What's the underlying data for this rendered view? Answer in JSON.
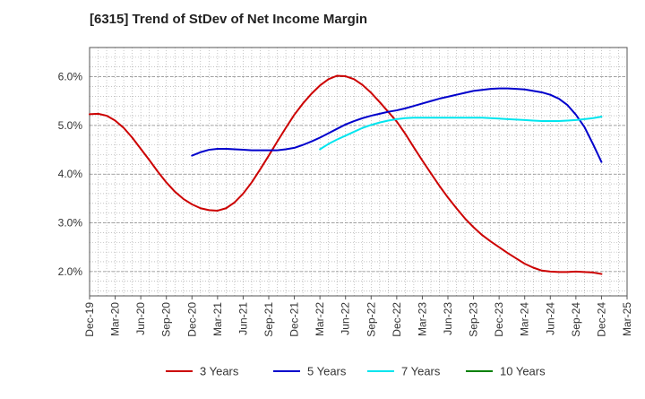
{
  "title": "[6315]  Trend of StDev of Net Income Margin",
  "chart_data": {
    "type": "line",
    "title": "[6315]  Trend of StDev of Net Income Margin",
    "xlabel": "",
    "ylabel": "",
    "y_unit": "%",
    "ylim": [
      1.5,
      6.6
    ],
    "y_ticks": [
      2.0,
      3.0,
      4.0,
      5.0,
      6.0
    ],
    "y_tick_labels": [
      "2.0%",
      "3.0%",
      "4.0%",
      "5.0%",
      "6.0%"
    ],
    "x_tick_labels": [
      "Dec-19",
      "Mar-20",
      "Jun-20",
      "Sep-20",
      "Dec-20",
      "Mar-21",
      "Jun-21",
      "Sep-21",
      "Dec-21",
      "Mar-22",
      "Jun-22",
      "Sep-22",
      "Dec-22",
      "Mar-23",
      "Jun-23",
      "Sep-23",
      "Dec-23",
      "Mar-24",
      "Jun-24",
      "Sep-24",
      "Dec-24",
      "Mar-25"
    ],
    "grid": true,
    "legend_position": "bottom",
    "series": [
      {
        "name": "3 Years",
        "color": "#cc0000",
        "x": [
          "Dec-19",
          "Jan-20",
          "Feb-20",
          "Mar-20",
          "Apr-20",
          "May-20",
          "Jun-20",
          "Jul-20",
          "Aug-20",
          "Sep-20",
          "Oct-20",
          "Nov-20",
          "Dec-20",
          "Jan-21",
          "Feb-21",
          "Mar-21",
          "Apr-21",
          "May-21",
          "Jun-21",
          "Jul-21",
          "Aug-21",
          "Sep-21",
          "Oct-21",
          "Nov-21",
          "Dec-21",
          "Jan-22",
          "Feb-22",
          "Mar-22",
          "Apr-22",
          "May-22",
          "Jun-22",
          "Jul-22",
          "Aug-22",
          "Sep-22",
          "Oct-22",
          "Nov-22",
          "Dec-22",
          "Jan-23",
          "Feb-23",
          "Mar-23",
          "Apr-23",
          "May-23",
          "Jun-23",
          "Jul-23",
          "Aug-23",
          "Sep-23",
          "Oct-23",
          "Nov-23",
          "Dec-23",
          "Jan-24",
          "Feb-24",
          "Mar-24",
          "Apr-24",
          "May-24",
          "Jun-24",
          "Jul-24",
          "Aug-24",
          "Sep-24",
          "Oct-24",
          "Nov-24",
          "Dec-24"
        ],
        "values": [
          5.23,
          5.24,
          5.2,
          5.1,
          4.95,
          4.75,
          4.52,
          4.29,
          4.05,
          3.83,
          3.64,
          3.49,
          3.38,
          3.3,
          3.26,
          3.25,
          3.3,
          3.42,
          3.6,
          3.83,
          4.1,
          4.38,
          4.67,
          4.95,
          5.22,
          5.45,
          5.65,
          5.82,
          5.95,
          6.02,
          6.01,
          5.95,
          5.83,
          5.67,
          5.48,
          5.28,
          5.08,
          4.83,
          4.55,
          4.28,
          4.02,
          3.76,
          3.52,
          3.3,
          3.09,
          2.91,
          2.75,
          2.62,
          2.5,
          2.38,
          2.27,
          2.16,
          2.08,
          2.02,
          2.0,
          1.99,
          1.99,
          2.0,
          1.99,
          1.98,
          1.95
        ]
      },
      {
        "name": "5 Years",
        "color": "#0000cc",
        "x": [
          "Dec-20",
          "Jan-21",
          "Feb-21",
          "Mar-21",
          "Apr-21",
          "May-21",
          "Jun-21",
          "Jul-21",
          "Aug-21",
          "Sep-21",
          "Oct-21",
          "Nov-21",
          "Dec-21",
          "Jan-22",
          "Feb-22",
          "Mar-22",
          "Apr-22",
          "May-22",
          "Jun-22",
          "Jul-22",
          "Aug-22",
          "Sep-22",
          "Oct-22",
          "Nov-22",
          "Dec-22",
          "Jan-23",
          "Feb-23",
          "Mar-23",
          "Apr-23",
          "May-23",
          "Jun-23",
          "Jul-23",
          "Aug-23",
          "Sep-23",
          "Oct-23",
          "Nov-23",
          "Dec-23",
          "Jan-24",
          "Feb-24",
          "Mar-24",
          "Apr-24",
          "May-24",
          "Jun-24",
          "Jul-24",
          "Aug-24",
          "Sep-24",
          "Oct-24",
          "Nov-24",
          "Dec-24"
        ],
        "values": [
          4.38,
          4.45,
          4.5,
          4.52,
          4.52,
          4.51,
          4.5,
          4.49,
          4.49,
          4.49,
          4.49,
          4.51,
          4.54,
          4.6,
          4.67,
          4.75,
          4.84,
          4.93,
          5.02,
          5.09,
          5.15,
          5.2,
          5.24,
          5.28,
          5.31,
          5.35,
          5.4,
          5.45,
          5.5,
          5.55,
          5.59,
          5.63,
          5.67,
          5.71,
          5.73,
          5.75,
          5.76,
          5.76,
          5.75,
          5.74,
          5.71,
          5.68,
          5.63,
          5.55,
          5.42,
          5.22,
          4.97,
          4.62,
          4.25
        ]
      },
      {
        "name": "7 Years",
        "color": "#00e5ee",
        "x": [
          "Mar-22",
          "Apr-22",
          "May-22",
          "Jun-22",
          "Jul-22",
          "Aug-22",
          "Sep-22",
          "Oct-22",
          "Nov-22",
          "Dec-22",
          "Jan-23",
          "Feb-23",
          "Mar-23",
          "Apr-23",
          "May-23",
          "Jun-23",
          "Jul-23",
          "Aug-23",
          "Sep-23",
          "Oct-23",
          "Nov-23",
          "Dec-23",
          "Jan-24",
          "Feb-24",
          "Mar-24",
          "Apr-24",
          "May-24",
          "Jun-24",
          "Jul-24",
          "Aug-24",
          "Sep-24",
          "Oct-24",
          "Nov-24",
          "Dec-24"
        ],
        "values": [
          4.51,
          4.62,
          4.71,
          4.79,
          4.87,
          4.95,
          5.01,
          5.06,
          5.1,
          5.13,
          5.15,
          5.16,
          5.16,
          5.16,
          5.16,
          5.16,
          5.16,
          5.16,
          5.16,
          5.16,
          5.15,
          5.14,
          5.13,
          5.12,
          5.11,
          5.1,
          5.09,
          5.09,
          5.09,
          5.1,
          5.11,
          5.13,
          5.15,
          5.18
        ]
      },
      {
        "name": "10 Years",
        "color": "#008000",
        "x": [],
        "values": []
      }
    ]
  }
}
